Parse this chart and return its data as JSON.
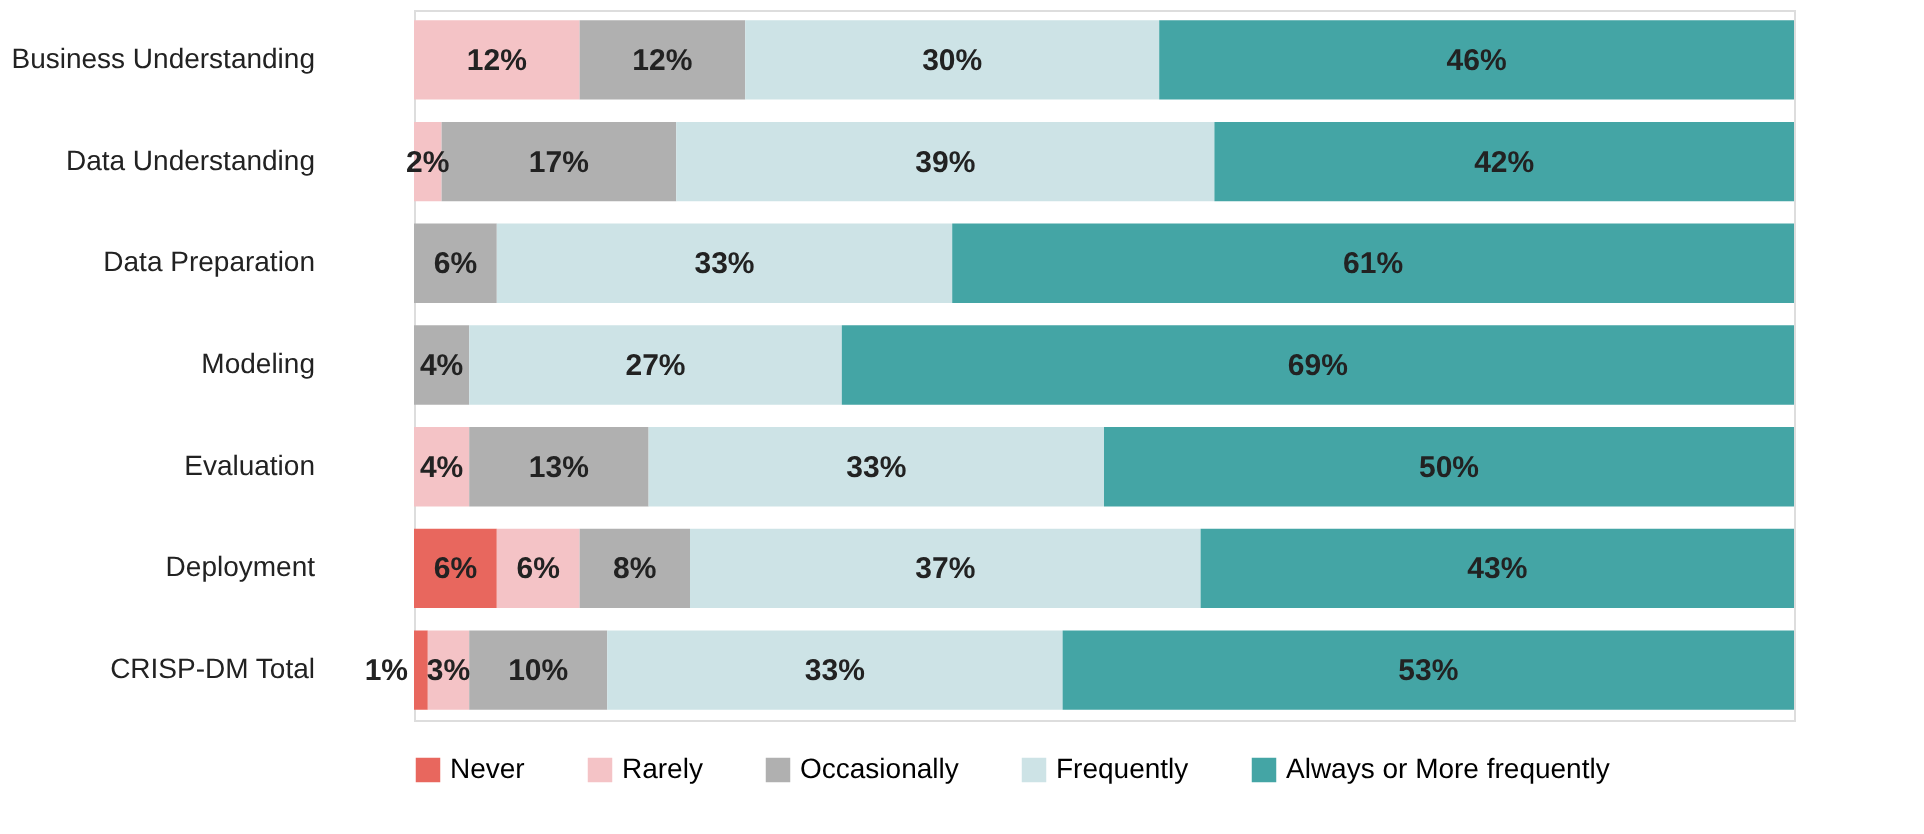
{
  "chart_data": {
    "type": "bar",
    "orientation": "horizontal",
    "stacked": true,
    "categories": [
      "Business Understanding",
      "Data Understanding",
      "Data Preparation",
      "Modeling",
      "Evaluation",
      "Deployment",
      "CRISP-DM Total"
    ],
    "series": [
      {
        "name": "Never",
        "color": "#e8675e",
        "values": [
          null,
          null,
          null,
          null,
          null,
          6,
          1
        ],
        "value_labels": [
          null,
          null,
          null,
          null,
          null,
          "6%",
          "1%"
        ]
      },
      {
        "name": "Rarely",
        "color": "#f4c3c6",
        "values": [
          12,
          2,
          null,
          null,
          4,
          6,
          3
        ],
        "value_labels": [
          "12%",
          "2%",
          null,
          null,
          "4%",
          "6%",
          "3%"
        ]
      },
      {
        "name": "Occasionally",
        "color": "#b0b0b0",
        "values": [
          12,
          17,
          6,
          4,
          13,
          8,
          10
        ],
        "value_labels": [
          "12%",
          "17%",
          "6%",
          "4%",
          "13%",
          "8%",
          "10%"
        ]
      },
      {
        "name": "Frequently",
        "color": "#cde3e6",
        "values": [
          30,
          39,
          33,
          27,
          33,
          37,
          33
        ],
        "value_labels": [
          "30%",
          "39%",
          "33%",
          "27%",
          "33%",
          "37%",
          "33%"
        ]
      },
      {
        "name": "Always or More frequently",
        "color": "#44a5a5",
        "values": [
          46,
          42,
          61,
          69,
          50,
          43,
          53
        ],
        "value_labels": [
          "46%",
          "42%",
          "61%",
          "69%",
          "50%",
          "43%",
          "53%"
        ]
      }
    ],
    "xlim": [
      0,
      100
    ],
    "tick_labels": "y",
    "legend": "bottom",
    "grid": false
  }
}
